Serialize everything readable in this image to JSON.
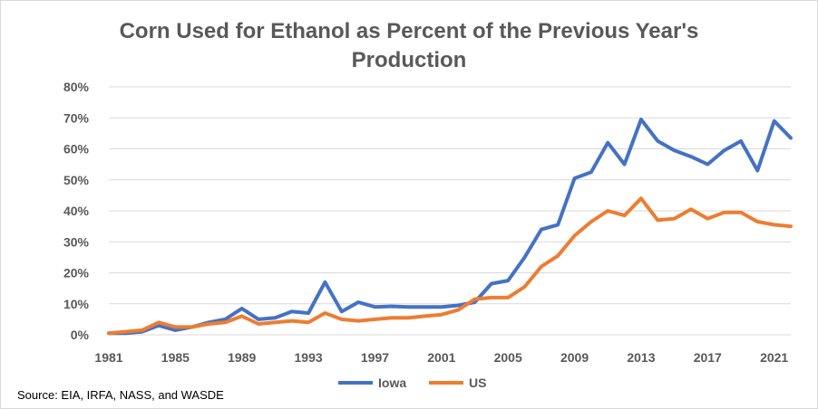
{
  "chart_data": {
    "type": "line",
    "title_lines": [
      "Corn Used for Ethanol as Percent of the Previous Year's",
      "Production"
    ],
    "x": [
      1981,
      1982,
      1983,
      1984,
      1985,
      1986,
      1987,
      1988,
      1989,
      1990,
      1991,
      1992,
      1993,
      1994,
      1995,
      1996,
      1997,
      1998,
      1999,
      2000,
      2001,
      2002,
      2003,
      2004,
      2005,
      2006,
      2007,
      2008,
      2009,
      2010,
      2011,
      2012,
      2013,
      2014,
      2015,
      2016,
      2017,
      2018,
      2019,
      2020,
      2021,
      2022
    ],
    "x_tick_labels": [
      "1981",
      "1985",
      "1989",
      "1993",
      "1997",
      "2001",
      "2005",
      "2009",
      "2013",
      "2017",
      "2021"
    ],
    "y_tick_labels": [
      "0%",
      "10%",
      "20%",
      "30%",
      "40%",
      "50%",
      "60%",
      "70%",
      "80%"
    ],
    "ylim": [
      0,
      80
    ],
    "grid": true,
    "legend_position": "bottom",
    "series": [
      {
        "name": "Iowa",
        "color": "#4472c4",
        "values": [
          0.5,
          0.5,
          1.0,
          3.0,
          1.5,
          2.5,
          4.0,
          5.0,
          8.5,
          5.0,
          5.5,
          7.5,
          7.0,
          17.0,
          7.5,
          10.5,
          9.0,
          9.2,
          9.0,
          9.0,
          9.0,
          9.5,
          10.5,
          16.5,
          17.5,
          25.0,
          34.0,
          35.5,
          50.5,
          52.5,
          62.0,
          55.0,
          69.5,
          62.5,
          59.5,
          57.5,
          55.0,
          59.5,
          62.5,
          53.0,
          69.0,
          63.5
        ]
      },
      {
        "name": "US",
        "color": "#ed7d31",
        "values": [
          0.5,
          1.0,
          1.5,
          4.0,
          2.5,
          2.5,
          3.5,
          4.0,
          6.0,
          3.5,
          4.0,
          4.5,
          4.0,
          7.0,
          5.0,
          4.5,
          5.0,
          5.5,
          5.5,
          6.0,
          6.5,
          8.0,
          11.5,
          12.0,
          12.0,
          15.5,
          22.0,
          25.5,
          32.0,
          36.5,
          40.0,
          38.5,
          44.0,
          37.0,
          37.5,
          40.5,
          37.5,
          39.5,
          39.5,
          36.5,
          35.5,
          35.0
        ]
      }
    ],
    "source_note": "Source: EIA, IRFA, NASS, and WASDE",
    "style": {
      "grid_color": "#d9d9d9",
      "axis_text_color": "#595959",
      "title_color": "#595959"
    }
  }
}
